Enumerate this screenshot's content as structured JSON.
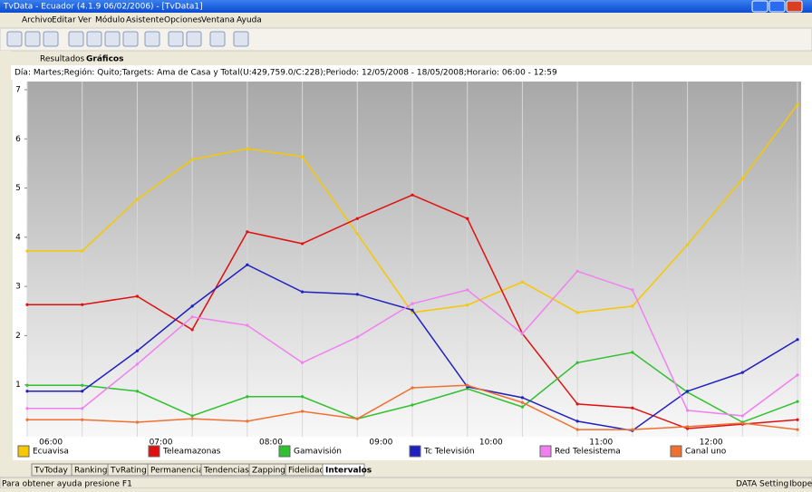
{
  "window": {
    "title": "TvData - Ecuador (4.1.9 06/02/2006) - [TvData1]"
  },
  "menu": [
    "Archivo",
    "Editar",
    "Ver",
    "Módulo",
    "Asistente",
    "Opciones",
    "Ventana",
    "Ayuda"
  ],
  "tabs": [
    "Resultados",
    "Gráficos"
  ],
  "info": "Día: Martes;Región: Quito;Targets: Ama de Casa y Total(U:429,759.0/C:228);Periodo: 12/05/2008 - 18/05/2008;Horario: 06:00 - 12:59",
  "bottom_tabs": [
    "TvToday",
    "Ranking",
    "TvRating",
    "Permanencia",
    "Tendencias",
    "Zapping",
    "Fidelidad",
    "Intervalos"
  ],
  "status": {
    "text": "Para obtener ayuda presione F1",
    "panels": [
      "DATA",
      "Setting",
      "Ibope"
    ]
  },
  "chart_data": {
    "type": "line",
    "categories": [
      null,
      null,
      null,
      null,
      null,
      null,
      null,
      null,
      null,
      null,
      null,
      null,
      null,
      null,
      null
    ],
    "time_labels": [
      "06:00",
      "07:00",
      "08:00",
      "09:00",
      "10:00",
      "11:00",
      "12:00"
    ],
    "ylim": [
      0,
      7
    ],
    "yticks": [
      1,
      2,
      3,
      4,
      5,
      6,
      7
    ],
    "series": [
      {
        "name": "Ecuavisa",
        "color": "#f5c800",
        "values": [
          3.72,
          3.72,
          4.77,
          5.58,
          5.8,
          5.64,
          4.07,
          2.47,
          2.62,
          3.09,
          2.47,
          2.6,
          3.85,
          5.19,
          6.7
        ]
      },
      {
        "name": "Teleamazonas",
        "color": "#e01010",
        "values": [
          2.63,
          2.63,
          2.8,
          2.12,
          4.11,
          3.87,
          4.38,
          4.86,
          4.38,
          2.04,
          0.61,
          0.53,
          0.11,
          0.2,
          0.29
        ]
      },
      {
        "name": "Gamavisión",
        "color": "#30c030",
        "values": [
          0.99,
          0.99,
          0.87,
          0.37,
          0.76,
          0.76,
          0.31,
          0.59,
          0.92,
          0.55,
          1.45,
          1.66,
          0.85,
          0.24,
          0.66
        ]
      },
      {
        "name": "Tc Televisión",
        "color": "#2020c0",
        "values": [
          0.87,
          0.87,
          1.69,
          2.6,
          3.44,
          2.89,
          2.84,
          2.52,
          0.96,
          0.74,
          0.26,
          0.07,
          0.87,
          1.25,
          1.92
        ]
      },
      {
        "name": "Red Telesistema",
        "color": "#f080f0",
        "values": [
          0.52,
          0.52,
          1.42,
          2.38,
          2.21,
          1.45,
          1.97,
          2.65,
          2.93,
          2.04,
          3.31,
          2.93,
          0.48,
          0.37,
          1.2
        ]
      },
      {
        "name": "Canal uno",
        "color": "#f07030",
        "values": [
          0.29,
          0.29,
          0.24,
          0.31,
          0.26,
          0.46,
          0.31,
          0.94,
          0.99,
          0.64,
          0.09,
          0.09,
          0.15,
          0.22,
          0.09
        ]
      }
    ]
  }
}
